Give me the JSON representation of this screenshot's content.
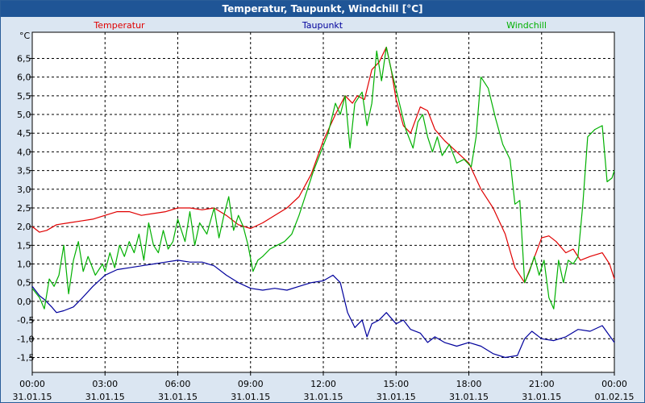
{
  "window": {
    "title": "Temperatur, Taupunkt, Windchill [°C]"
  },
  "chart_data": {
    "type": "line",
    "title": "Temperatur, Taupunkt, Windchill [°C]",
    "ylabel": "°C",
    "ylim": [
      -1.9,
      7.2
    ],
    "xlim": [
      0,
      24
    ],
    "grid": true,
    "legend_position": "top",
    "y_ticks": [
      "6,5",
      "6,0",
      "5,5",
      "5,0",
      "4,5",
      "4,0",
      "3,5",
      "3,0",
      "2,5",
      "2,0",
      "1,5",
      "1,0",
      "0,5",
      "0,0",
      "-0,5",
      "-1,0",
      "-1,5"
    ],
    "y_tick_values": [
      6.5,
      6.0,
      5.5,
      5.0,
      4.5,
      4.0,
      3.5,
      3.0,
      2.5,
      2.0,
      1.5,
      1.0,
      0.5,
      0.0,
      -0.5,
      -1.0,
      -1.5
    ],
    "x_ticks": [
      {
        "time": "00:00",
        "date": "31.01.15",
        "hour": 0
      },
      {
        "time": "03:00",
        "date": "31.01.15",
        "hour": 3
      },
      {
        "time": "06:00",
        "date": "31.01.15",
        "hour": 6
      },
      {
        "time": "09:00",
        "date": "31.01.15",
        "hour": 9
      },
      {
        "time": "12:00",
        "date": "31.01.15",
        "hour": 12
      },
      {
        "time": "15:00",
        "date": "31.01.15",
        "hour": 15
      },
      {
        "time": "18:00",
        "date": "31.01.15",
        "hour": 18
      },
      {
        "time": "21:00",
        "date": "31.01.15",
        "hour": 21
      },
      {
        "time": "00:00",
        "date": "01.02.15",
        "hour": 24
      }
    ],
    "series": [
      {
        "name": "Temperatur",
        "color": "#e00000",
        "points": [
          [
            0.0,
            2.0
          ],
          [
            0.3,
            1.85
          ],
          [
            0.6,
            1.9
          ],
          [
            1.0,
            2.05
          ],
          [
            1.5,
            2.1
          ],
          [
            2.0,
            2.15
          ],
          [
            2.5,
            2.2
          ],
          [
            3.0,
            2.3
          ],
          [
            3.5,
            2.4
          ],
          [
            4.0,
            2.4
          ],
          [
            4.5,
            2.3
          ],
          [
            5.0,
            2.35
          ],
          [
            5.5,
            2.4
          ],
          [
            6.0,
            2.5
          ],
          [
            6.5,
            2.5
          ],
          [
            7.0,
            2.45
          ],
          [
            7.5,
            2.5
          ],
          [
            8.0,
            2.3
          ],
          [
            8.5,
            2.05
          ],
          [
            9.0,
            1.95
          ],
          [
            9.5,
            2.1
          ],
          [
            10.0,
            2.3
          ],
          [
            10.5,
            2.5
          ],
          [
            11.0,
            2.8
          ],
          [
            11.5,
            3.4
          ],
          [
            12.0,
            4.3
          ],
          [
            12.5,
            5.0
          ],
          [
            12.9,
            5.5
          ],
          [
            13.2,
            5.3
          ],
          [
            13.4,
            5.5
          ],
          [
            13.7,
            5.4
          ],
          [
            14.0,
            6.2
          ],
          [
            14.3,
            6.4
          ],
          [
            14.6,
            6.8
          ],
          [
            14.8,
            6.2
          ],
          [
            15.0,
            5.4
          ],
          [
            15.3,
            4.7
          ],
          [
            15.6,
            4.5
          ],
          [
            16.0,
            5.2
          ],
          [
            16.3,
            5.1
          ],
          [
            16.6,
            4.6
          ],
          [
            17.0,
            4.3
          ],
          [
            17.5,
            4.0
          ],
          [
            18.0,
            3.7
          ],
          [
            18.5,
            3.0
          ],
          [
            19.0,
            2.5
          ],
          [
            19.5,
            1.8
          ],
          [
            19.9,
            0.9
          ],
          [
            20.3,
            0.5
          ],
          [
            20.6,
            1.0
          ],
          [
            21.0,
            1.7
          ],
          [
            21.3,
            1.75
          ],
          [
            21.6,
            1.6
          ],
          [
            22.0,
            1.3
          ],
          [
            22.3,
            1.4
          ],
          [
            22.6,
            1.1
          ],
          [
            23.0,
            1.2
          ],
          [
            23.5,
            1.3
          ],
          [
            23.8,
            1.0
          ],
          [
            24.0,
            0.6
          ]
        ]
      },
      {
        "name": "Taupunkt",
        "color": "#00009c",
        "points": [
          [
            0.0,
            0.4
          ],
          [
            0.3,
            0.15
          ],
          [
            0.5,
            0.05
          ],
          [
            0.8,
            -0.15
          ],
          [
            1.0,
            -0.3
          ],
          [
            1.3,
            -0.25
          ],
          [
            1.7,
            -0.15
          ],
          [
            2.0,
            0.05
          ],
          [
            2.5,
            0.4
          ],
          [
            3.0,
            0.7
          ],
          [
            3.5,
            0.85
          ],
          [
            4.0,
            0.9
          ],
          [
            4.5,
            0.95
          ],
          [
            5.0,
            1.0
          ],
          [
            5.5,
            1.05
          ],
          [
            6.0,
            1.1
          ],
          [
            6.5,
            1.05
          ],
          [
            7.0,
            1.05
          ],
          [
            7.5,
            0.95
          ],
          [
            8.0,
            0.7
          ],
          [
            8.5,
            0.5
          ],
          [
            9.0,
            0.35
          ],
          [
            9.5,
            0.3
          ],
          [
            10.0,
            0.35
          ],
          [
            10.5,
            0.3
          ],
          [
            11.0,
            0.4
          ],
          [
            11.5,
            0.5
          ],
          [
            12.0,
            0.55
          ],
          [
            12.4,
            0.7
          ],
          [
            12.7,
            0.5
          ],
          [
            13.0,
            -0.3
          ],
          [
            13.3,
            -0.7
          ],
          [
            13.6,
            -0.5
          ],
          [
            13.8,
            -0.95
          ],
          [
            14.0,
            -0.6
          ],
          [
            14.3,
            -0.5
          ],
          [
            14.6,
            -0.3
          ],
          [
            15.0,
            -0.6
          ],
          [
            15.3,
            -0.5
          ],
          [
            15.6,
            -0.75
          ],
          [
            16.0,
            -0.85
          ],
          [
            16.3,
            -1.1
          ],
          [
            16.6,
            -0.95
          ],
          [
            17.0,
            -1.1
          ],
          [
            17.5,
            -1.2
          ],
          [
            18.0,
            -1.1
          ],
          [
            18.5,
            -1.2
          ],
          [
            19.0,
            -1.4
          ],
          [
            19.5,
            -1.5
          ],
          [
            20.0,
            -1.45
          ],
          [
            20.3,
            -1.0
          ],
          [
            20.6,
            -0.8
          ],
          [
            21.0,
            -1.0
          ],
          [
            21.5,
            -1.05
          ],
          [
            22.0,
            -0.95
          ],
          [
            22.5,
            -0.75
          ],
          [
            23.0,
            -0.8
          ],
          [
            23.5,
            -0.65
          ],
          [
            24.0,
            -1.1
          ]
        ]
      },
      {
        "name": "Windchill",
        "color": "#00b000",
        "points": [
          [
            0.0,
            0.35
          ],
          [
            0.3,
            0.1
          ],
          [
            0.5,
            -0.2
          ],
          [
            0.7,
            0.6
          ],
          [
            0.9,
            0.4
          ],
          [
            1.1,
            0.7
          ],
          [
            1.3,
            1.5
          ],
          [
            1.5,
            0.2
          ],
          [
            1.7,
            1.1
          ],
          [
            1.9,
            1.6
          ],
          [
            2.1,
            0.8
          ],
          [
            2.3,
            1.2
          ],
          [
            2.6,
            0.7
          ],
          [
            2.9,
            1.0
          ],
          [
            3.0,
            0.8
          ],
          [
            3.2,
            1.3
          ],
          [
            3.4,
            0.9
          ],
          [
            3.6,
            1.5
          ],
          [
            3.8,
            1.2
          ],
          [
            4.0,
            1.6
          ],
          [
            4.2,
            1.3
          ],
          [
            4.4,
            1.8
          ],
          [
            4.6,
            1.1
          ],
          [
            4.8,
            2.1
          ],
          [
            5.0,
            1.5
          ],
          [
            5.2,
            1.3
          ],
          [
            5.4,
            1.9
          ],
          [
            5.6,
            1.4
          ],
          [
            5.8,
            1.6
          ],
          [
            6.0,
            2.2
          ],
          [
            6.3,
            1.6
          ],
          [
            6.5,
            2.4
          ],
          [
            6.7,
            1.5
          ],
          [
            6.9,
            2.1
          ],
          [
            7.2,
            1.8
          ],
          [
            7.5,
            2.5
          ],
          [
            7.7,
            1.7
          ],
          [
            7.9,
            2.3
          ],
          [
            8.1,
            2.8
          ],
          [
            8.3,
            1.9
          ],
          [
            8.5,
            2.3
          ],
          [
            8.7,
            2.0
          ],
          [
            8.9,
            1.5
          ],
          [
            9.1,
            0.8
          ],
          [
            9.3,
            1.1
          ],
          [
            9.5,
            1.2
          ],
          [
            9.8,
            1.4
          ],
          [
            10.1,
            1.5
          ],
          [
            10.4,
            1.6
          ],
          [
            10.7,
            1.8
          ],
          [
            11.0,
            2.3
          ],
          [
            11.3,
            2.9
          ],
          [
            11.6,
            3.5
          ],
          [
            11.9,
            4.0
          ],
          [
            12.2,
            4.5
          ],
          [
            12.5,
            5.3
          ],
          [
            12.7,
            5.0
          ],
          [
            12.9,
            5.5
          ],
          [
            13.1,
            4.1
          ],
          [
            13.3,
            5.3
          ],
          [
            13.6,
            5.6
          ],
          [
            13.8,
            4.7
          ],
          [
            14.0,
            5.3
          ],
          [
            14.2,
            6.7
          ],
          [
            14.4,
            5.9
          ],
          [
            14.6,
            6.8
          ],
          [
            14.8,
            6.2
          ],
          [
            15.1,
            5.4
          ],
          [
            15.4,
            4.6
          ],
          [
            15.7,
            4.1
          ],
          [
            15.9,
            4.8
          ],
          [
            16.1,
            5.0
          ],
          [
            16.3,
            4.4
          ],
          [
            16.5,
            4.0
          ],
          [
            16.7,
            4.4
          ],
          [
            16.9,
            3.9
          ],
          [
            17.2,
            4.2
          ],
          [
            17.5,
            3.7
          ],
          [
            17.8,
            3.8
          ],
          [
            18.1,
            3.6
          ],
          [
            18.3,
            4.4
          ],
          [
            18.5,
            6.0
          ],
          [
            18.8,
            5.7
          ],
          [
            19.1,
            4.9
          ],
          [
            19.4,
            4.2
          ],
          [
            19.7,
            3.8
          ],
          [
            19.9,
            2.6
          ],
          [
            20.1,
            2.7
          ],
          [
            20.3,
            0.5
          ],
          [
            20.5,
            0.8
          ],
          [
            20.7,
            1.2
          ],
          [
            20.9,
            0.7
          ],
          [
            21.1,
            1.1
          ],
          [
            21.3,
            0.1
          ],
          [
            21.5,
            -0.2
          ],
          [
            21.7,
            1.1
          ],
          [
            21.9,
            0.5
          ],
          [
            22.1,
            1.1
          ],
          [
            22.3,
            1.0
          ],
          [
            22.5,
            1.2
          ],
          [
            22.7,
            2.6
          ],
          [
            22.9,
            4.4
          ],
          [
            23.2,
            4.6
          ],
          [
            23.5,
            4.7
          ],
          [
            23.7,
            3.2
          ],
          [
            23.9,
            3.3
          ],
          [
            24.0,
            3.5
          ]
        ]
      }
    ]
  }
}
